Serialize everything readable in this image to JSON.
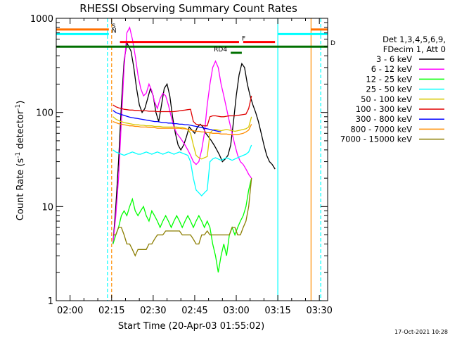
{
  "chart_data": {
    "type": "line",
    "title": "RHESSI Observing Summary Count Rates",
    "xlabel": "Start Time (20-Apr-03 01:55:02)",
    "ylabel_main": "Count Rate (s",
    "ylabel_sup1": "-1",
    "ylabel_mid": " detector",
    "ylabel_sup2": "-1",
    "ylabel_end": ")",
    "footer": "17-Oct-2021 10:28",
    "x_unit": "minutes since 01:55:02",
    "xlim": [
      0,
      98
    ],
    "ylim": [
      1,
      1000
    ],
    "yscale": "log",
    "x_ticks": [
      {
        "label": "02:00",
        "value": 5
      },
      {
        "label": "02:15",
        "value": 20
      },
      {
        "label": "02:30",
        "value": 35
      },
      {
        "label": "02:45",
        "value": 50
      },
      {
        "label": "03:00",
        "value": 65
      },
      {
        "label": "03:15",
        "value": 80
      },
      {
        "label": "03:30",
        "value": 95
      }
    ],
    "y_ticks": [
      {
        "label": "1",
        "value": 1
      },
      {
        "label": "10",
        "value": 10
      },
      {
        "label": "100",
        "value": 100
      },
      {
        "label": "1000",
        "value": 1000
      }
    ],
    "legend": {
      "placement": "right",
      "header": [
        "Det 1,3,4,5,6,9,",
        "FDecim 1, Att 0"
      ],
      "entries": [
        {
          "label": "3 - 6 keV",
          "color": "#000000"
        },
        {
          "label": "6 - 12 keV",
          "color": "#ff00ff"
        },
        {
          "label": "12 - 25 keV",
          "color": "#00ff00"
        },
        {
          "label": "25 - 50 keV",
          "color": "#00ffff"
        },
        {
          "label": "50 - 100 keV",
          "color": "#d8c800"
        },
        {
          "label": "100 - 300 keV",
          "color": "#e00000"
        },
        {
          "label": "300 - 800 keV",
          "color": "#0000ff"
        },
        {
          "label": "800 - 7000 keV",
          "color": "#ff8c00"
        },
        {
          "label": "7000 - 15000 keV",
          "color": "#8b7d00"
        }
      ]
    },
    "series": [
      {
        "name": "3 - 6 keV",
        "color": "#000000",
        "x": [
          20.5,
          21.5,
          22.5,
          23.5,
          24.5,
          25.5,
          27,
          28,
          29,
          30,
          31,
          32,
          33,
          34,
          35,
          36,
          37,
          38,
          39,
          40,
          41,
          42,
          43,
          44,
          45,
          46,
          47,
          48,
          49,
          50,
          51,
          52,
          53,
          54,
          55,
          56,
          57,
          58,
          59,
          60,
          61,
          62,
          63,
          64,
          65,
          66,
          67,
          68,
          69,
          70,
          71,
          72,
          73,
          74,
          75,
          76,
          77,
          78,
          79
        ],
        "y": [
          4,
          10,
          30,
          120,
          350,
          550,
          450,
          300,
          180,
          120,
          100,
          110,
          140,
          180,
          150,
          100,
          80,
          120,
          180,
          200,
          150,
          90,
          60,
          45,
          40,
          45,
          55,
          70,
          65,
          60,
          70,
          75,
          70,
          60,
          55,
          50,
          45,
          40,
          35,
          30,
          32,
          35,
          45,
          80,
          150,
          250,
          330,
          300,
          200,
          150,
          120,
          100,
          80,
          60,
          45,
          35,
          30,
          28,
          25
        ]
      },
      {
        "name": "6 - 12 keV",
        "color": "#ff00ff",
        "x": [
          20.5,
          21.5,
          22.5,
          23.5,
          24.5,
          25.5,
          26.5,
          27.5,
          28.5,
          29.5,
          30.5,
          31.5,
          32.5,
          33.5,
          34.5,
          35.5,
          36.5,
          37.5,
          38.5,
          39.5,
          40.5,
          41.5,
          42.5,
          43.5,
          44.5,
          45.5,
          46.5,
          47.5,
          48.5,
          49.5,
          50.5,
          51.5,
          52.5,
          53.5,
          54.5,
          55.5,
          56.5,
          57.5,
          58.5,
          59.5,
          60.5,
          61.5,
          62.5,
          63.5,
          64.5,
          65.5,
          66.5,
          67.5,
          68.5,
          69.5,
          70.5
        ],
        "y": [
          4,
          8,
          20,
          80,
          300,
          700,
          800,
          600,
          400,
          250,
          180,
          150,
          160,
          200,
          170,
          130,
          110,
          140,
          160,
          150,
          120,
          90,
          70,
          60,
          55,
          50,
          45,
          40,
          35,
          30,
          28,
          30,
          40,
          60,
          120,
          200,
          300,
          350,
          300,
          200,
          150,
          110,
          80,
          60,
          45,
          35,
          30,
          28,
          25,
          22,
          20
        ]
      },
      {
        "name": "12 - 25 keV",
        "color": "#00ff00",
        "x": [
          20.5,
          21.5,
          22.5,
          23.5,
          24.5,
          25.5,
          26.5,
          27.5,
          28.5,
          29.5,
          30.5,
          31.5,
          32.5,
          33.5,
          34.5,
          35.5,
          36.5,
          37.5,
          38.5,
          39.5,
          40.5,
          41.5,
          42.5,
          43.5,
          44.5,
          45.5,
          46.5,
          47.5,
          48.5,
          49.5,
          50.5,
          51.5,
          52.5,
          53.5,
          54.5,
          55.5,
          56.5,
          57.5,
          58.5,
          59.5,
          60.5,
          61.5,
          62.5,
          63.5,
          64.5,
          65.5,
          66.5,
          67.5,
          68.5,
          69.5,
          70.5
        ],
        "y": [
          4,
          5,
          6,
          8,
          9,
          8,
          10,
          12,
          9,
          8,
          9,
          10,
          8,
          7,
          9,
          8,
          7,
          6,
          7,
          8,
          7,
          6,
          7,
          8,
          7,
          6,
          7,
          8,
          7,
          6,
          7,
          8,
          7,
          6,
          7,
          6,
          4,
          3,
          2,
          3,
          4,
          3,
          5,
          6,
          5,
          6,
          7,
          8,
          10,
          15,
          20
        ]
      },
      {
        "name": "25 - 50 keV",
        "color": "#00ffff",
        "x": [
          20.5,
          21.5,
          22.5,
          23.5,
          24.5,
          25.5,
          26.5,
          27.5,
          28.5,
          29.5,
          30.5,
          31.5,
          32.5,
          33.5,
          34.5,
          35.5,
          36.5,
          37.5,
          38.5,
          39.5,
          40.5,
          41.5,
          42.5,
          43.5,
          44.5,
          45.5,
          46.5,
          47.5,
          48.5,
          49.5,
          50.5,
          51.5,
          52.5,
          53.5,
          54.5,
          55.5,
          56.5,
          57.5,
          58.5,
          59.5,
          60.5,
          61.5,
          62.5,
          63.5,
          64.5,
          65.5,
          66.5,
          67.5,
          68.5,
          69.5,
          70.5
        ],
        "y": [
          40,
          38,
          37,
          36,
          35,
          36,
          37,
          38,
          37,
          36,
          36,
          37,
          38,
          37,
          36,
          37,
          38,
          37,
          36,
          37,
          38,
          37,
          36,
          37,
          38,
          37,
          36,
          35,
          30,
          20,
          15,
          14,
          13,
          14,
          15,
          30,
          32,
          33,
          32,
          31,
          32,
          33,
          32,
          31,
          32,
          33,
          34,
          35,
          36,
          38,
          45
        ]
      },
      {
        "name": "50 - 100 keV",
        "color": "#d8c800",
        "x": [
          20.5,
          21.5,
          22.5,
          23.5,
          24.5,
          25.5,
          26.5,
          27.5,
          28.5,
          29.5,
          30.5,
          31.5,
          32.5,
          33.5,
          34.5,
          35.5,
          36.5,
          37.5,
          38.5,
          39.5,
          40.5,
          41.5,
          42.5,
          43.5,
          44.5,
          45.5,
          46.5,
          47.5,
          48.5,
          49.5,
          50.5,
          51.5,
          52.5,
          53.5,
          54.5,
          55.5,
          56.5,
          57.5,
          58.5,
          59.5,
          60.5,
          61.5,
          62.5,
          63.5,
          64.5,
          65.5,
          66.5,
          67.5,
          68.5,
          69.5,
          70.5
        ],
        "y": [
          90,
          85,
          82,
          80,
          78,
          77,
          76,
          75,
          74,
          74,
          73,
          73,
          72,
          72,
          72,
          71,
          71,
          71,
          70,
          70,
          70,
          70,
          70,
          70,
          69,
          69,
          68,
          66,
          60,
          45,
          35,
          33,
          32,
          33,
          34,
          60,
          65,
          66,
          65,
          64,
          65,
          66,
          65,
          64,
          63,
          64,
          65,
          66,
          67,
          70,
          90
        ]
      },
      {
        "name": "100 - 300 keV",
        "color": "#e00000",
        "x": [
          20.5,
          21.5,
          22.5,
          23.5,
          24.5,
          25.5,
          26.5,
          27.5,
          28.5,
          29.5,
          30.5,
          31.5,
          32.5,
          33.5,
          34.5,
          35.5,
          36.5,
          37.5,
          38.5,
          39.5,
          40.5,
          41.5,
          42.5,
          43.5,
          44.5,
          45.5,
          46.5,
          47.5,
          48.5,
          49.5,
          50.5,
          51.5,
          52.5,
          53.5,
          54.5,
          55.5,
          56.5,
          57.5,
          58.5,
          59.5,
          60.5,
          61.5,
          62.5,
          63.5,
          64.5,
          65.5,
          66.5,
          67.5,
          68.5,
          69.5,
          70.5
        ],
        "y": [
          120,
          115,
          112,
          110,
          108,
          107,
          106,
          106,
          105,
          105,
          104,
          104,
          104,
          103,
          103,
          103,
          102,
          102,
          102,
          102,
          102,
          102,
          102,
          103,
          104,
          105,
          106,
          107,
          108,
          80,
          75,
          74,
          73,
          72,
          72,
          90,
          92,
          92,
          91,
          90,
          90,
          91,
          92,
          92,
          92,
          93,
          94,
          95,
          96,
          110,
          150
        ]
      },
      {
        "name": "300 - 800 keV",
        "color": "#0000ff",
        "x": [
          20.5,
          21.5,
          22.5,
          23.5,
          24.5,
          25.5,
          26.5,
          27.5,
          28.5,
          29.5,
          30.5,
          31.5,
          32.5,
          33.5,
          34.5,
          35.5,
          36.5,
          37.5,
          38.5,
          39.5,
          40.5,
          41.5,
          42.5,
          43.5,
          44.5,
          45.5,
          46.5,
          47.5,
          48.5,
          49.5,
          50.5,
          51.5,
          52.5,
          53.5,
          54.5,
          55.5,
          56.5,
          57.5,
          58.5,
          59.5
        ],
        "y": [
          105,
          100,
          97,
          95,
          93,
          91,
          89,
          88,
          87,
          86,
          85,
          84,
          83,
          82,
          81,
          80,
          80,
          79,
          78,
          78,
          77,
          77,
          76,
          76,
          75,
          75,
          74,
          74,
          73,
          72,
          71,
          70,
          69,
          68,
          67,
          66,
          65,
          64,
          63,
          62
        ]
      },
      {
        "name": "800 - 7000 keV",
        "color": "#ff8c00",
        "x": [
          20.5,
          21.5,
          22.5,
          23.5,
          24.5,
          25.5,
          26.5,
          27.5,
          28.5,
          29.5,
          30.5,
          31.5,
          32.5,
          33.5,
          34.5,
          35.5,
          36.5,
          37.5,
          38.5,
          39.5,
          40.5,
          41.5,
          42.5,
          43.5,
          44.5,
          45.5,
          46.5,
          47.5,
          48.5,
          49.5,
          50.5,
          51.5,
          52.5,
          53.5,
          54.5,
          55.5,
          56.5,
          57.5,
          58.5,
          59.5,
          60.5,
          61.5,
          62.5,
          63.5,
          64.5,
          65.5,
          66.5,
          67.5,
          68.5,
          69.5,
          70.5
        ],
        "y": [
          80,
          78,
          76,
          75,
          74,
          73,
          72,
          72,
          71,
          71,
          70,
          70,
          70,
          69,
          69,
          69,
          68,
          68,
          68,
          68,
          68,
          68,
          68,
          68,
          68,
          67,
          67,
          66,
          65,
          64,
          63,
          63,
          62,
          62,
          61,
          61,
          60,
          60,
          60,
          59,
          59,
          59,
          58,
          58,
          58,
          58,
          59,
          60,
          62,
          65,
          75
        ]
      },
      {
        "name": "7000 - 15000 keV",
        "color": "#8b7d00",
        "x": [
          20.5,
          21.5,
          22.5,
          23.5,
          24.5,
          25.5,
          26.5,
          27.5,
          28.5,
          29.5,
          30.5,
          31.5,
          32.5,
          33.5,
          34.5,
          35.5,
          36.5,
          37.5,
          38.5,
          39.5,
          40.5,
          41.5,
          42.5,
          43.5,
          44.5,
          45.5,
          46.5,
          47.5,
          48.5,
          49.5,
          50.5,
          51.5,
          52.5,
          53.5,
          54.5,
          55.5,
          56.5,
          57.5,
          58.5,
          59.5,
          60.5,
          61.5,
          62.5,
          63.5,
          64.5,
          65.5,
          66.5,
          67.5,
          68.5,
          69.5,
          70.5
        ],
        "y": [
          5,
          5,
          6,
          6,
          5,
          4,
          4,
          3.5,
          3,
          3.5,
          3.5,
          3.5,
          3.5,
          4,
          4,
          4.5,
          5,
          5,
          5,
          5.5,
          5.5,
          5.5,
          5.5,
          5.5,
          5.5,
          5,
          5,
          5,
          5,
          4.5,
          4,
          4,
          5,
          5,
          5.5,
          5,
          5,
          5,
          5,
          5,
          5,
          5,
          5,
          6,
          6,
          5,
          5,
          6,
          7,
          10,
          20
        ]
      }
    ],
    "state_bars": [
      {
        "label": "S",
        "color": "#ff7000",
        "level": 760,
        "segments": [
          [
            -5,
            19
          ],
          [
            92,
            98
          ]
        ]
      },
      {
        "label": "N",
        "color": "#00ffff",
        "level": 680,
        "segments": [
          [
            -5,
            19
          ],
          [
            80,
            98
          ]
        ]
      },
      {
        "label": "F",
        "color": "#ff0000",
        "level": 560,
        "segments": [
          [
            23,
            66
          ],
          [
            67.5,
            79
          ]
        ]
      },
      {
        "label": "D",
        "color": "#007000",
        "level": 500,
        "segments": [
          [
            -5,
            98
          ]
        ]
      },
      {
        "label": "RD4",
        "color": "#007000",
        "level": 430,
        "segments": [
          [
            63,
            67
          ]
        ]
      }
    ],
    "marker_lines": [
      {
        "value": 18.5,
        "color": "#00ffff",
        "style": "dashed"
      },
      {
        "value": 20,
        "color": "#ff8c00",
        "style": "dashed"
      },
      {
        "value": 80,
        "color": "#00ffff",
        "style": "solid"
      },
      {
        "value": 92,
        "color": "#ff8c00",
        "style": "solid"
      },
      {
        "value": 95.5,
        "color": "#00ffff",
        "style": "dashed"
      }
    ]
  }
}
